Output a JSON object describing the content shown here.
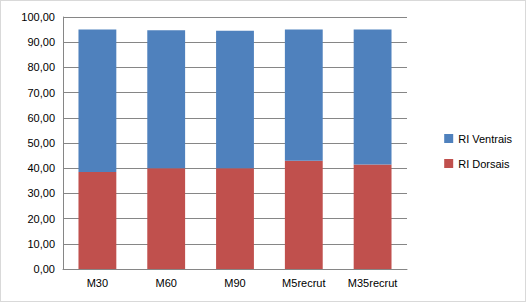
{
  "chart_data": {
    "type": "bar",
    "stacked": true,
    "categories": [
      "M30",
      "M60",
      "M90",
      "M5recrut",
      "M35recrut"
    ],
    "series": [
      {
        "name": "RI Dorsais",
        "color": "#c0504d",
        "values": [
          38.5,
          40.0,
          40.0,
          43.0,
          41.5
        ]
      },
      {
        "name": "RI Ventrais",
        "color": "#4f81bd",
        "values": [
          56.5,
          54.7,
          54.5,
          52.0,
          53.5
        ]
      }
    ],
    "ylim": [
      0,
      100
    ],
    "yticks": [
      {
        "value": 0,
        "label": "0,00"
      },
      {
        "value": 10,
        "label": "10,00"
      },
      {
        "value": 20,
        "label": "20,00"
      },
      {
        "value": 30,
        "label": "30,00"
      },
      {
        "value": 40,
        "label": "40,00"
      },
      {
        "value": 50,
        "label": "50,00"
      },
      {
        "value": 60,
        "label": "60,00"
      },
      {
        "value": 70,
        "label": "70,00"
      },
      {
        "value": 80,
        "label": "80,00"
      },
      {
        "value": 90,
        "label": "90,00"
      },
      {
        "value": 100,
        "label": "100,00"
      }
    ],
    "grid": true,
    "legend": "right"
  }
}
